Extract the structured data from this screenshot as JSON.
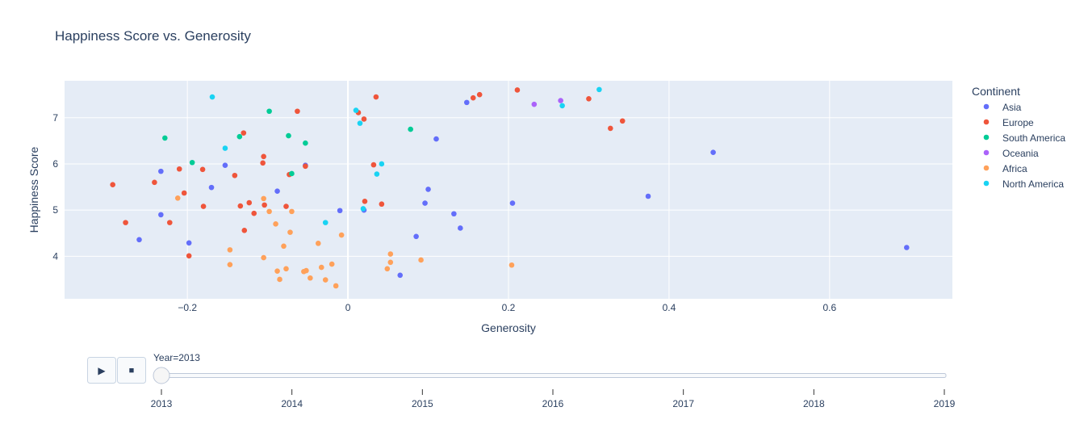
{
  "chart_data": {
    "type": "scatter",
    "title": "Happiness Score vs. Generosity",
    "xlabel": "Generosity",
    "ylabel": "Happiness Score",
    "xlim": [
      -0.353,
      0.753
    ],
    "ylim": [
      3.08,
      7.8
    ],
    "x_ticks": [
      -0.2,
      0,
      0.2,
      0.4,
      0.6
    ],
    "x_tick_labels": [
      "−0.2",
      "0",
      "0.2",
      "0.4",
      "0.6"
    ],
    "y_ticks": [
      4,
      5,
      6,
      7
    ],
    "y_tick_labels": [
      "4",
      "5",
      "6",
      "7"
    ],
    "grid": true,
    "legend_placement": "right",
    "legend_title": "Continent",
    "series": [
      {
        "name": "Asia",
        "color": "#636efa",
        "points": [
          [
            -0.26,
            4.36
          ],
          [
            -0.233,
            5.84
          ],
          [
            -0.233,
            4.9
          ],
          [
            -0.198,
            4.29
          ],
          [
            -0.17,
            5.49
          ],
          [
            -0.153,
            5.97
          ],
          [
            -0.088,
            5.41
          ],
          [
            -0.053,
            5.97
          ],
          [
            -0.01,
            4.99
          ],
          [
            0.02,
            5.0
          ],
          [
            0.065,
            3.59
          ],
          [
            0.085,
            4.43
          ],
          [
            0.096,
            5.15
          ],
          [
            0.1,
            5.45
          ],
          [
            0.11,
            6.54
          ],
          [
            0.132,
            4.92
          ],
          [
            0.14,
            4.61
          ],
          [
            0.148,
            7.33
          ],
          [
            0.205,
            5.15
          ],
          [
            0.374,
            5.3
          ],
          [
            0.455,
            6.25
          ],
          [
            0.696,
            4.19
          ]
        ]
      },
      {
        "name": "Europe",
        "color": "#ef553b",
        "points": [
          [
            -0.293,
            5.55
          ],
          [
            -0.277,
            4.73
          ],
          [
            -0.241,
            5.6
          ],
          [
            -0.222,
            4.73
          ],
          [
            -0.21,
            5.89
          ],
          [
            -0.204,
            5.37
          ],
          [
            -0.198,
            4.01
          ],
          [
            -0.181,
            5.88
          ],
          [
            -0.18,
            5.08
          ],
          [
            -0.141,
            5.75
          ],
          [
            -0.134,
            5.09
          ],
          [
            -0.13,
            6.67
          ],
          [
            -0.129,
            4.56
          ],
          [
            -0.123,
            5.16
          ],
          [
            -0.117,
            4.93
          ],
          [
            -0.106,
            6.02
          ],
          [
            -0.105,
            6.16
          ],
          [
            -0.104,
            5.11
          ],
          [
            -0.077,
            5.08
          ],
          [
            -0.073,
            5.77
          ],
          [
            -0.063,
            7.14
          ],
          [
            -0.053,
            5.95
          ],
          [
            0.013,
            7.11
          ],
          [
            0.02,
            6.97
          ],
          [
            0.021,
            5.19
          ],
          [
            0.032,
            5.98
          ],
          [
            0.035,
            7.45
          ],
          [
            0.042,
            5.13
          ],
          [
            0.156,
            7.43
          ],
          [
            0.164,
            7.5
          ],
          [
            0.211,
            7.6
          ],
          [
            0.3,
            7.41
          ],
          [
            0.327,
            6.77
          ],
          [
            0.342,
            6.93
          ]
        ]
      },
      {
        "name": "South America",
        "color": "#00cc96",
        "points": [
          [
            -0.228,
            6.56
          ],
          [
            -0.194,
            6.03
          ],
          [
            -0.135,
            6.59
          ],
          [
            -0.098,
            7.14
          ],
          [
            -0.074,
            6.61
          ],
          [
            -0.07,
            5.79
          ],
          [
            -0.053,
            6.45
          ],
          [
            0.078,
            6.75
          ]
        ]
      },
      {
        "name": "Oceania",
        "color": "#ab63fa",
        "points": [
          [
            0.232,
            7.29
          ],
          [
            0.265,
            7.37
          ]
        ]
      },
      {
        "name": "Africa",
        "color": "#ffa15a",
        "points": [
          [
            -0.212,
            5.26
          ],
          [
            -0.147,
            4.14
          ],
          [
            -0.147,
            3.82
          ],
          [
            -0.105,
            5.25
          ],
          [
            -0.105,
            3.97
          ],
          [
            -0.098,
            4.97
          ],
          [
            -0.09,
            4.7
          ],
          [
            -0.088,
            3.68
          ],
          [
            -0.085,
            3.5
          ],
          [
            -0.08,
            4.22
          ],
          [
            -0.077,
            3.73
          ],
          [
            -0.072,
            4.52
          ],
          [
            -0.07,
            4.97
          ],
          [
            -0.055,
            3.67
          ],
          [
            -0.052,
            3.69
          ],
          [
            -0.047,
            3.53
          ],
          [
            -0.037,
            4.28
          ],
          [
            -0.033,
            3.76
          ],
          [
            -0.028,
            3.49
          ],
          [
            -0.02,
            3.83
          ],
          [
            -0.015,
            3.36
          ],
          [
            -0.008,
            4.46
          ],
          [
            0.049,
            3.73
          ],
          [
            0.053,
            4.05
          ],
          [
            0.053,
            3.87
          ],
          [
            0.091,
            3.92
          ],
          [
            0.204,
            3.81
          ]
        ]
      },
      {
        "name": "North America",
        "color": "#19d3f3",
        "points": [
          [
            -0.169,
            7.45
          ],
          [
            -0.153,
            6.34
          ],
          [
            -0.028,
            4.73
          ],
          [
            0.01,
            7.16
          ],
          [
            0.015,
            6.88
          ],
          [
            0.019,
            5.03
          ],
          [
            0.036,
            5.78
          ],
          [
            0.042,
            6.0
          ],
          [
            0.267,
            7.26
          ],
          [
            0.313,
            7.61
          ]
        ]
      }
    ]
  },
  "slider": {
    "current_label": "Year=2013",
    "ticks": [
      "2013",
      "2014",
      "2015",
      "2016",
      "2017",
      "2018",
      "2019"
    ],
    "value": "2013"
  },
  "controls": {
    "play_glyph": "▶",
    "stop_glyph": "■"
  }
}
